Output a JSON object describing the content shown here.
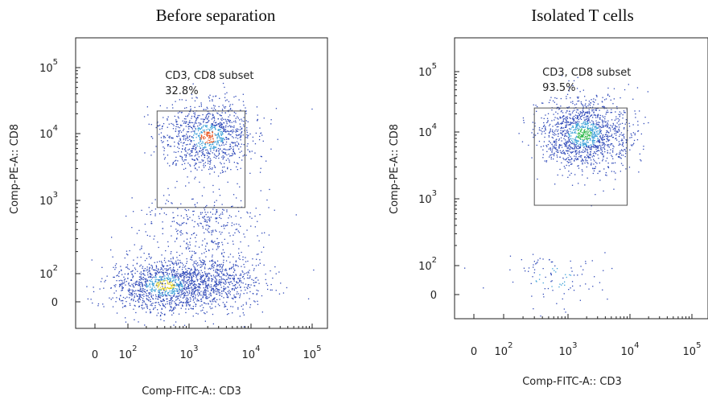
{
  "chart_data": [
    {
      "type": "scatter",
      "title": "Before separation",
      "xlabel": "Comp-FITC-A:: CD3",
      "ylabel": "Comp-PE-A:: CD8",
      "x_scale": "biexponential",
      "y_scale": "biexponential",
      "x_ticks": [
        {
          "mant": "0",
          "exp": ""
        },
        {
          "mant": "10",
          "exp": "2"
        },
        {
          "mant": "10",
          "exp": "3"
        },
        {
          "mant": "10",
          "exp": "4"
        },
        {
          "mant": "10",
          "exp": "5"
        }
      ],
      "y_ticks": [
        {
          "mant": "0",
          "exp": ""
        },
        {
          "mant": "10",
          "exp": "2"
        },
        {
          "mant": "10",
          "exp": "3"
        },
        {
          "mant": "10",
          "exp": "4"
        },
        {
          "mant": "10",
          "exp": "5"
        }
      ],
      "gate": {
        "name": "CD3, CD8 subset",
        "percent": "32.8%",
        "x_range": [
          300,
          8000
        ],
        "y_range": [
          800,
          22000
        ]
      },
      "populations": [
        {
          "x_center": 2000,
          "y_center": 9000,
          "share": 0.328,
          "peak_color": "#e8541f"
        },
        {
          "x_center": 400,
          "y_center": 60,
          "share": 0.36,
          "peak_color": "#e0d020"
        },
        {
          "x_center": 2500,
          "y_center": 80,
          "share": 0.22,
          "peak_color": "#2f49b8"
        },
        {
          "x_center": 1500,
          "y_center": 500,
          "share": 0.092,
          "peak_color": "#2f49b8"
        }
      ]
    },
    {
      "type": "scatter",
      "title": "Isolated T cells",
      "xlabel": "Comp-FITC-A:: CD3",
      "ylabel": "Comp-PE-A:: CD8",
      "x_scale": "biexponential",
      "y_scale": "biexponential",
      "x_ticks": [
        {
          "mant": "0",
          "exp": ""
        },
        {
          "mant": "10",
          "exp": "2"
        },
        {
          "mant": "10",
          "exp": "3"
        },
        {
          "mant": "10",
          "exp": "4"
        },
        {
          "mant": "10",
          "exp": "5"
        }
      ],
      "y_ticks": [
        {
          "mant": "0",
          "exp": ""
        },
        {
          "mant": "10",
          "exp": "2"
        },
        {
          "mant": "10",
          "exp": "3"
        },
        {
          "mant": "10",
          "exp": "4"
        },
        {
          "mant": "10",
          "exp": "5"
        }
      ],
      "gate": {
        "name": "CD3, CD8 subset",
        "percent": "93.5%",
        "x_range": [
          300,
          9000
        ],
        "y_range": [
          800,
          25000
        ]
      },
      "populations": [
        {
          "x_center": 1800,
          "y_center": 9500,
          "share": 0.935,
          "peak_color": "#2fb84a"
        },
        {
          "x_center": 600,
          "y_center": 60,
          "share": 0.065,
          "peak_color": "#2f49b8"
        }
      ]
    }
  ]
}
